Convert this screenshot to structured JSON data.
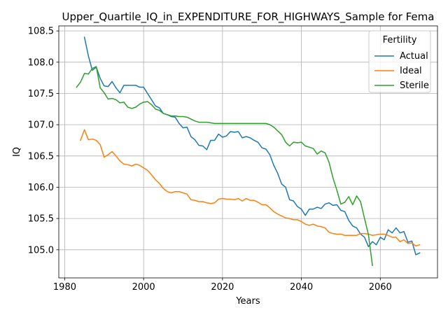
{
  "chart_data": {
    "type": "line",
    "title": "Upper_Quartile_IQ_in_EXPENDITURE_FOR_HIGHWAYS_Sample for Fema",
    "xlabel": "Years",
    "ylabel": "IQ",
    "xlim": [
      1978.5,
      2074.5
    ],
    "ylim": [
      104.55,
      108.58
    ],
    "xticks": [
      1980,
      2000,
      2020,
      2040,
      2060
    ],
    "xtick_labels": [
      "1980",
      "2000",
      "2020",
      "2040",
      "2060"
    ],
    "yticks": [
      105.0,
      105.5,
      106.0,
      106.5,
      107.0,
      107.5,
      108.0,
      108.5
    ],
    "ytick_labels": [
      "105.0",
      "105.5",
      "106.0",
      "106.5",
      "107.0",
      "107.5",
      "108.0",
      "108.5"
    ],
    "grid": true,
    "legend": {
      "title": "Fertility",
      "placement": "upper right"
    },
    "series": [
      {
        "name": "Actual",
        "color": "#1f77b4",
        "x": [
          1985,
          1986,
          1987,
          1988,
          1989,
          1990,
          1991,
          1992,
          1993,
          1994,
          1995,
          1996,
          1997,
          1998,
          1999,
          2000,
          2001,
          2002,
          2003,
          2004,
          2005,
          2006,
          2007,
          2008,
          2009,
          2010,
          2011,
          2012,
          2013,
          2014,
          2015,
          2016,
          2017,
          2018,
          2019,
          2020,
          2021,
          2022,
          2023,
          2024,
          2025,
          2026,
          2027,
          2028,
          2029,
          2030,
          2031,
          2032,
          2033,
          2034,
          2035,
          2036,
          2037,
          2038,
          2039,
          2040,
          2041,
          2042,
          2043,
          2044,
          2045,
          2046,
          2047,
          2048,
          2049,
          2050,
          2051,
          2052,
          2053,
          2054,
          2055,
          2056,
          2057,
          2058,
          2059,
          2060,
          2061,
          2062,
          2063,
          2064,
          2065,
          2066,
          2067,
          2068,
          2069,
          2070
        ],
        "values": [
          108.4,
          108.1,
          107.87,
          107.92,
          107.74,
          107.62,
          107.61,
          107.69,
          107.59,
          107.51,
          107.63,
          107.63,
          107.63,
          107.63,
          107.6,
          107.6,
          107.5,
          107.4,
          107.3,
          107.27,
          107.18,
          107.16,
          107.13,
          107.12,
          107.02,
          106.95,
          106.96,
          106.81,
          106.76,
          106.67,
          106.66,
          106.6,
          106.75,
          106.75,
          106.85,
          106.8,
          106.82,
          106.89,
          106.88,
          106.89,
          106.79,
          106.81,
          106.79,
          106.75,
          106.72,
          106.63,
          106.61,
          106.52,
          106.35,
          106.22,
          106.05,
          106.0,
          105.8,
          105.78,
          105.69,
          105.65,
          105.55,
          105.65,
          105.65,
          105.68,
          105.66,
          105.73,
          105.75,
          105.71,
          105.72,
          105.63,
          105.61,
          105.47,
          105.38,
          105.35,
          105.25,
          105.2,
          105.05,
          105.13,
          105.08,
          105.2,
          105.16,
          105.32,
          105.27,
          105.35,
          105.27,
          105.29,
          105.12,
          105.14,
          104.92,
          104.95
        ]
      },
      {
        "name": "Ideal",
        "color": "#ff7f0e",
        "x": [
          1984,
          1985,
          1986,
          1987,
          1988,
          1989,
          1990,
          1991,
          1992,
          1993,
          1994,
          1995,
          1996,
          1997,
          1998,
          1999,
          2000,
          2001,
          2002,
          2003,
          2004,
          2005,
          2006,
          2007,
          2008,
          2009,
          2010,
          2011,
          2012,
          2013,
          2014,
          2015,
          2016,
          2017,
          2018,
          2019,
          2020,
          2021,
          2022,
          2023,
          2024,
          2025,
          2026,
          2027,
          2028,
          2029,
          2030,
          2031,
          2032,
          2033,
          2034,
          2035,
          2036,
          2037,
          2038,
          2039,
          2040,
          2041,
          2042,
          2043,
          2044,
          2045,
          2046,
          2047,
          2048,
          2049,
          2050,
          2051,
          2052,
          2053,
          2054,
          2055,
          2056,
          2057,
          2058,
          2059,
          2060,
          2061,
          2062,
          2063,
          2064,
          2065,
          2066,
          2067,
          2068,
          2069,
          2070
        ],
        "values": [
          106.75,
          106.92,
          106.76,
          106.77,
          106.75,
          106.68,
          106.48,
          106.52,
          106.57,
          106.5,
          106.42,
          106.37,
          106.36,
          106.34,
          106.37,
          106.35,
          106.31,
          106.27,
          106.2,
          106.12,
          106.06,
          105.98,
          105.93,
          105.91,
          105.93,
          105.93,
          105.91,
          105.89,
          105.8,
          105.79,
          105.77,
          105.77,
          105.75,
          105.74,
          105.75,
          105.81,
          105.82,
          105.81,
          105.81,
          105.8,
          105.82,
          105.78,
          105.82,
          105.79,
          105.79,
          105.76,
          105.72,
          105.72,
          105.67,
          105.61,
          105.57,
          105.54,
          105.51,
          105.5,
          105.48,
          105.48,
          105.45,
          105.41,
          105.39,
          105.41,
          105.38,
          105.37,
          105.35,
          105.28,
          105.26,
          105.25,
          105.25,
          105.23,
          105.23,
          105.23,
          105.23,
          105.26,
          105.26,
          105.25,
          105.23,
          105.24,
          105.25,
          105.25,
          105.23,
          105.2,
          105.2,
          105.13,
          105.16,
          105.1,
          105.11,
          105.06,
          105.08
        ]
      },
      {
        "name": "Sterile",
        "color": "#2ca02c",
        "x": [
          1983,
          1984,
          1985,
          1986,
          1987,
          1988,
          1989,
          1990,
          1991,
          1992,
          1993,
          1994,
          1995,
          1996,
          1997,
          1998,
          1999,
          2000,
          2001,
          2002,
          2003,
          2004,
          2005,
          2006,
          2007,
          2008,
          2009,
          2010,
          2011,
          2012,
          2013,
          2014,
          2015,
          2016,
          2017,
          2018,
          2019,
          2020,
          2021,
          2022,
          2023,
          2024,
          2025,
          2026,
          2027,
          2028,
          2029,
          2030,
          2031,
          2032,
          2033,
          2034,
          2035,
          2036,
          2037,
          2038,
          2039,
          2040,
          2041,
          2042,
          2043,
          2044,
          2045,
          2046,
          2047,
          2048,
          2049,
          2050,
          2051,
          2052,
          2053,
          2054,
          2055,
          2056,
          2057,
          2058
        ],
        "values": [
          107.6,
          107.68,
          107.82,
          107.81,
          107.9,
          107.93,
          107.59,
          107.51,
          107.41,
          107.42,
          107.4,
          107.35,
          107.36,
          107.28,
          107.26,
          107.28,
          107.33,
          107.36,
          107.37,
          107.32,
          107.25,
          107.23,
          107.18,
          107.16,
          107.14,
          107.14,
          107.13,
          107.13,
          107.12,
          107.09,
          107.06,
          107.04,
          107.04,
          107.04,
          107.03,
          107.02,
          107.02,
          107.02,
          107.02,
          107.02,
          107.02,
          107.02,
          107.02,
          107.02,
          107.02,
          107.02,
          107.02,
          107.02,
          107.02,
          107.0,
          106.96,
          106.9,
          106.84,
          106.72,
          106.66,
          106.72,
          106.71,
          106.72,
          106.66,
          106.64,
          106.62,
          106.53,
          106.58,
          106.55,
          106.4,
          106.15,
          105.95,
          105.73,
          105.76,
          105.85,
          105.72,
          105.86,
          105.77,
          105.5,
          105.24,
          104.75
        ]
      }
    ]
  }
}
